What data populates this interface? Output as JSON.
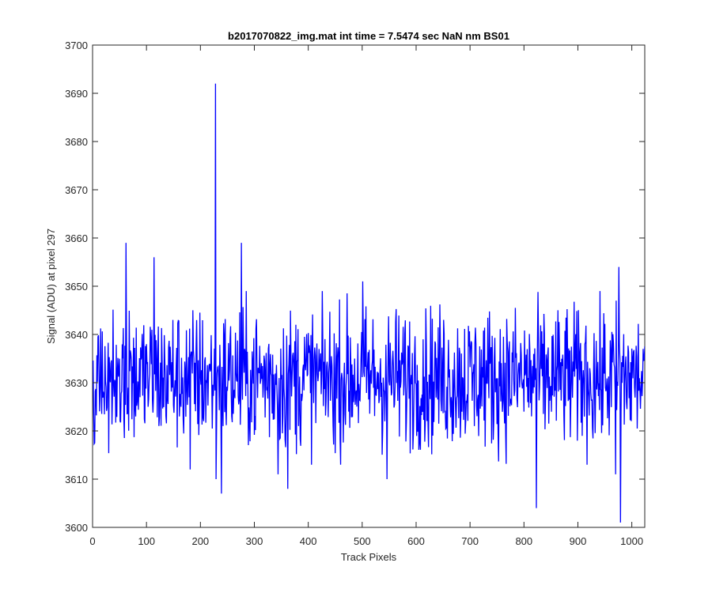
{
  "figure": {
    "background": "#ffffff"
  },
  "chart_data": {
    "type": "line",
    "title": "b2017070822_img.mat int time = 7.5474 sec  NaN nm BS01",
    "xlabel": "Track Pixels",
    "ylabel": "Signal (ADU) at pixel 297",
    "xlim": [
      0,
      1024
    ],
    "ylim": [
      3600,
      3700
    ],
    "xticks": [
      0,
      100,
      200,
      300,
      400,
      500,
      600,
      700,
      800,
      900,
      1000
    ],
    "yticks": [
      3600,
      3610,
      3620,
      3630,
      3640,
      3650,
      3660,
      3670,
      3680,
      3690,
      3700
    ],
    "xtick_labels": [
      "0",
      "100",
      "200",
      "300",
      "400",
      "500",
      "600",
      "700",
      "800",
      "900",
      "1000"
    ],
    "ytick_labels": [
      "3600",
      "3610",
      "3620",
      "3630",
      "3640",
      "3650",
      "3660",
      "3670",
      "3680",
      "3690",
      "3700"
    ],
    "grid": false,
    "series_color": "#0000ff",
    "baseline": 3631,
    "noise_amplitude": 8,
    "n_points": 1024,
    "spikes": [
      {
        "x": 61,
        "y": 3659
      },
      {
        "x": 113,
        "y": 3656
      },
      {
        "x": 180,
        "y": 3612
      },
      {
        "x": 227,
        "y": 3692
      },
      {
        "x": 228,
        "y": 3610
      },
      {
        "x": 238,
        "y": 3607
      },
      {
        "x": 275,
        "y": 3659
      },
      {
        "x": 343,
        "y": 3611
      },
      {
        "x": 361,
        "y": 3608
      },
      {
        "x": 500,
        "y": 3651
      },
      {
        "x": 545,
        "y": 3610
      },
      {
        "x": 822,
        "y": 3604
      },
      {
        "x": 975,
        "y": 3654
      },
      {
        "x": 978,
        "y": 3601
      },
      {
        "x": 969,
        "y": 3611
      }
    ]
  }
}
